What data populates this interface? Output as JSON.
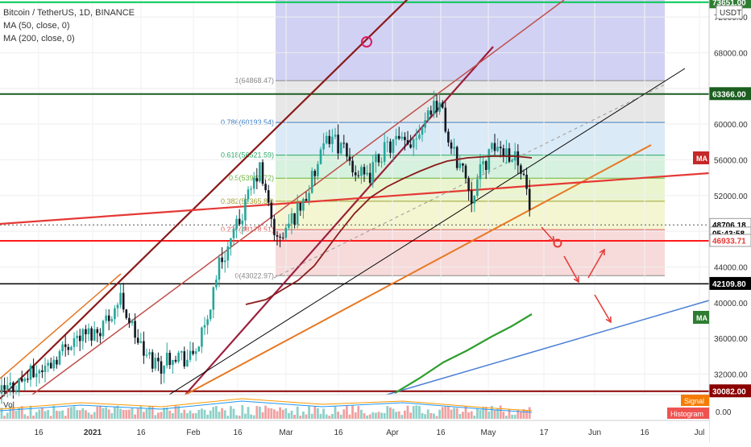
{
  "legend": {
    "symbol_line": "Bitcoin / TetherUS, 1D, BINANCE",
    "ma50_line": "MA (50, close, 0)",
    "ma200_line": "MA (200, close, 0)"
  },
  "currency_label": "USDT",
  "volume_label": "Vol",
  "buttons": {
    "signal": "Signal",
    "histogram": "Histogram",
    "ma_label": "MA"
  },
  "volume_axis_label": "0.00",
  "colors": {
    "up": "#26a69a",
    "down": "#131722",
    "ma50": "#8b1a1a",
    "ma200": "#2e9e2e",
    "red_level": "#ff0000",
    "green_level": "#2e7d32",
    "orange_line": "#e87722",
    "maroon_line": "#9c1f3c",
    "blue_line": "#4a7fd6",
    "zone_red": "#f4c7c7",
    "zone_purple": "#c9c9f2",
    "zone_green": "#dff0c9"
  },
  "chart_data": {
    "type": "candlestick",
    "symbol": "Bitcoin / TetherUS",
    "interval": "1D",
    "exchange": "BINANCE",
    "yaxis": {
      "ticks": [
        32000,
        36000,
        40000,
        44000,
        48000,
        52000,
        56000,
        60000,
        64000,
        68000,
        72000
      ],
      "tick_labels": [
        "32000.00",
        "36000.00",
        "40000.00",
        "44000.00",
        "",
        "52000.00",
        "56000.00",
        "60000.00",
        "",
        "68000.00",
        "72000.00"
      ],
      "range": [
        29700,
        73900
      ]
    },
    "xaxis": {
      "tick_labels": [
        "16",
        "2021",
        "16",
        "Feb",
        "16",
        "Mar",
        "16",
        "Apr",
        "16",
        "May",
        "17",
        "Jun",
        "16",
        "Jul"
      ]
    },
    "price_labels": [
      {
        "value": 73651.0,
        "text": "73651.00",
        "bg": "#2e7d32",
        "fg": "#ffffff"
      },
      {
        "value": 63366.0,
        "text": "63366.00",
        "bg": "#1b5e20",
        "fg": "#ffffff"
      },
      {
        "value": 48706.18,
        "text": "48706.18",
        "bg": "#ffffff",
        "fg": "#000000"
      },
      {
        "value": 47750,
        "text": "05:43:58",
        "bg": "#ffffff",
        "fg": "#000000"
      },
      {
        "value": 46933.71,
        "text": "46933.71",
        "bg": "#ffffff",
        "fg": "#e53935"
      },
      {
        "value": 42109.8,
        "text": "42109.80",
        "bg": "#000000",
        "fg": "#ffffff"
      },
      {
        "value": 30082.0,
        "text": "30082.00",
        "bg": "#8b0000",
        "fg": "#ffffff"
      }
    ],
    "fibonacci": [
      {
        "ratio": "1",
        "price": 64868.47,
        "label": "1(64868.47)"
      },
      {
        "ratio": "0.786",
        "price": 60193.54,
        "label": "0.786(60193.54)"
      },
      {
        "ratio": "0.618",
        "price": 56521.59,
        "label": "0.618(56521.59)"
      },
      {
        "ratio": "0.5",
        "price": 53943.72,
        "label": "0.5(53943.72)"
      },
      {
        "ratio": "0.382",
        "price": 51365.85,
        "label": "0.382(51365.85)"
      },
      {
        "ratio": "0.236",
        "price": 48178.51,
        "label": "0.236(48178.51)"
      },
      {
        "ratio": "0",
        "price": 43022.97,
        "label": "0(43022.97)"
      }
    ],
    "horizontal_levels": [
      {
        "price": 73651.0,
        "color": "green"
      },
      {
        "price": 63366.0,
        "color": "darkgreen"
      },
      {
        "price": 46933.71,
        "color": "red"
      },
      {
        "price": 42109.8,
        "color": "black"
      },
      {
        "price": 30082.0,
        "color": "darkred"
      }
    ],
    "series": [
      {
        "name": "MA (50, close, 0)",
        "color": "#8b1a1a"
      },
      {
        "name": "MA (200, close, 0)",
        "color": "#2e9e2e"
      }
    ],
    "volume": {
      "label": "Vol"
    }
  }
}
